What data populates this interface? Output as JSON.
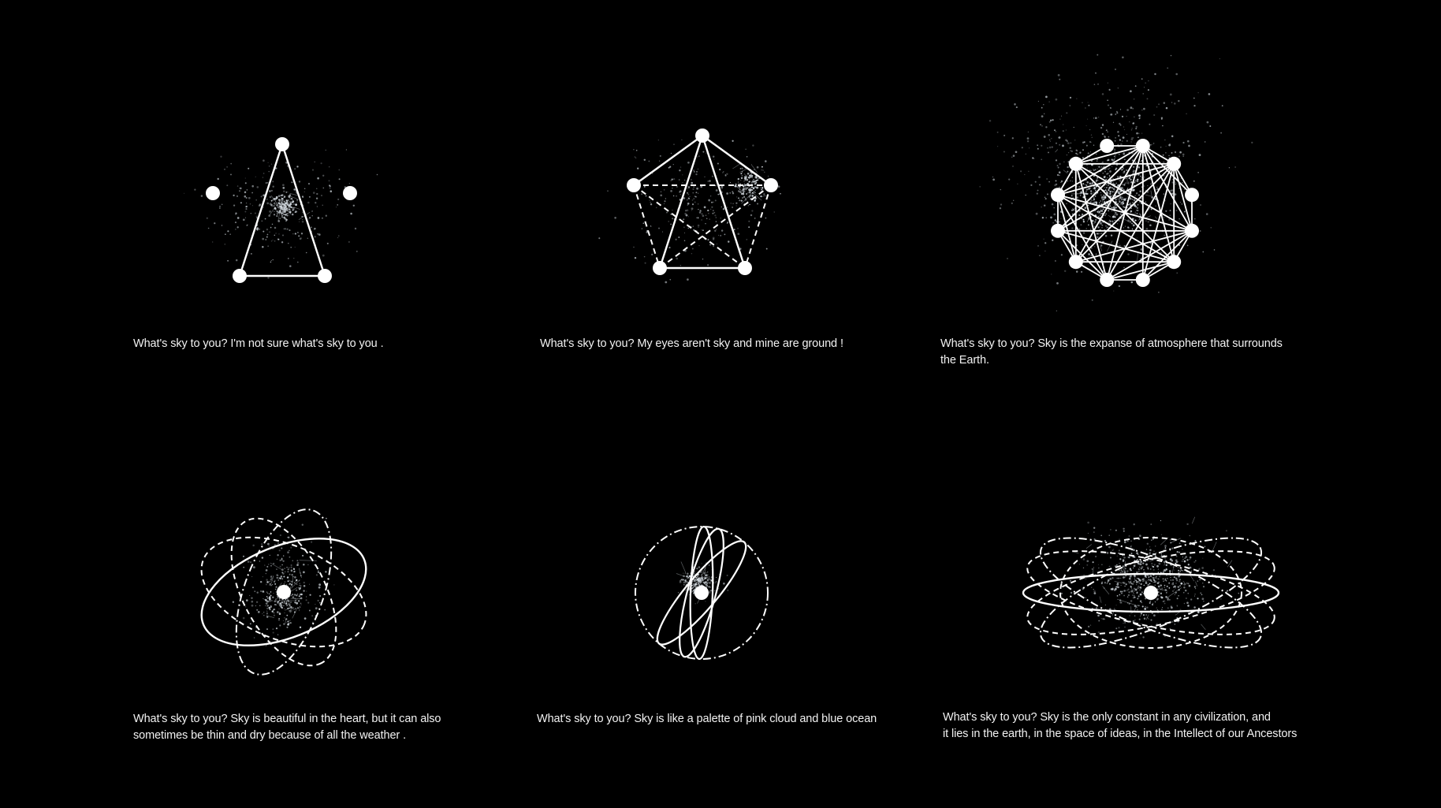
{
  "theme": {
    "background": "#000000",
    "foreground": "#ffffff",
    "cloud": "#cfd6dc"
  },
  "panels": [
    {
      "shape": "triangle",
      "node_count": 5,
      "caption": [
        "What's sky to you? I'm not sure what's sky to you ."
      ]
    },
    {
      "shape": "pentagon-star",
      "node_count": 5,
      "caption": [
        "What's sky to you? My eyes aren't sky and mine are ground !"
      ]
    },
    {
      "shape": "dense-polygon",
      "node_count": 12,
      "caption": [
        "What's sky to you? Sky is the expanse of atmosphere that surrounds",
        "the Earth."
      ]
    },
    {
      "shape": "orbits",
      "node_count": 1,
      "caption": [
        "What's sky to you? Sky is beautiful in the heart, but it can also",
        "sometimes be thin and dry because of all the weather ."
      ]
    },
    {
      "shape": "circle-orbits",
      "node_count": 1,
      "caption": [
        "What's sky to you? Sky is like a palette of pink cloud and blue ocean"
      ]
    },
    {
      "shape": "flat-orbits",
      "node_count": 1,
      "caption": [
        "What's sky to you? Sky is the only constant in any civilization, and",
        "it lies in the earth, in the space of ideas, in the Intellect of our Ancestors"
      ]
    }
  ]
}
